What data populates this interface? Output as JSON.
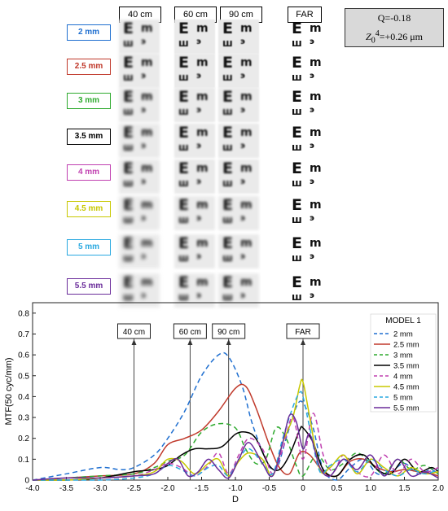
{
  "headers": {
    "c40": "40 cm",
    "c60": "60 cm",
    "c90": "90 cm",
    "far": "FAR"
  },
  "info": {
    "q": "Q=-0.18",
    "z_sym": "Z",
    "z_sup": "4",
    "z_sub": "0",
    "z_val": "=+0.26 μm"
  },
  "pupil_labels": [
    {
      "text": "2 mm",
      "color": "#1f6fd0"
    },
    {
      "text": "2.5 mm",
      "color": "#c0392b"
    },
    {
      "text": "3 mm",
      "color": "#2eaa2e"
    },
    {
      "text": "3.5 mm",
      "color": "#000000"
    },
    {
      "text": "4 mm",
      "color": "#c040b0"
    },
    {
      "text": "4.5 mm",
      "color": "#c8c800"
    },
    {
      "text": "5 mm",
      "color": "#28a8e0"
    },
    {
      "text": "5.5 mm",
      "color": "#6a2c9a"
    }
  ],
  "chart_data": {
    "type": "line",
    "xlabel": "D",
    "ylabel": "MTF(50 cyc/mm)",
    "xlim": [
      -4.0,
      2.0
    ],
    "ylim": [
      0,
      0.85
    ],
    "xticks": [
      -4.0,
      -3.5,
      -3.0,
      -2.5,
      -2.0,
      -1.5,
      -1.0,
      -0.5,
      0,
      0.5,
      1.0,
      1.5,
      2.0
    ],
    "xtick_labels": [
      "-4.0",
      "-3.5",
      "-3.0",
      "-2.5",
      "-2.0",
      "-1.5",
      "-1.0",
      "-0.5",
      "0",
      "0.5",
      "1.0",
      "1.5",
      "2.0"
    ],
    "yticks": [
      0,
      0.1,
      0.2,
      0.3,
      0.4,
      0.5,
      0.6,
      0.7,
      0.8
    ],
    "ytick_labels": [
      "0",
      "0.1",
      "0.2",
      "0.3",
      "0.4",
      "0.5",
      "0.6",
      "0.7",
      "0.8"
    ],
    "legend_title": "MODEL 1",
    "legend_position": "right",
    "annotations": [
      {
        "text": "40 cm",
        "x": -2.5,
        "y": 0.0
      },
      {
        "text": "60 cm",
        "x": -1.67,
        "y": 0.0
      },
      {
        "text": "90 cm",
        "x": -1.1,
        "y": 0.0
      },
      {
        "text": "FAR",
        "x": 0.0,
        "y": 0.0
      }
    ],
    "series": [
      {
        "name": "2 mm",
        "color": "#1f6fd0",
        "dash": "6,4",
        "x": [
          -4.0,
          -3.5,
          -3.0,
          -2.7,
          -2.5,
          -2.2,
          -2.0,
          -1.75,
          -1.5,
          -1.25,
          -1.1,
          -0.9,
          -0.75,
          -0.55,
          -0.4,
          -0.25,
          -0.1,
          0.0,
          0.15,
          0.3,
          0.5,
          0.7,
          0.9,
          1.1,
          1.3,
          1.5,
          1.7,
          1.9,
          2.0
        ],
        "values": [
          0.0,
          0.03,
          0.06,
          0.05,
          0.06,
          0.12,
          0.2,
          0.33,
          0.5,
          0.6,
          0.59,
          0.45,
          0.27,
          0.1,
          0.05,
          0.2,
          0.35,
          0.37,
          0.25,
          0.05,
          0.0,
          0.06,
          0.1,
          0.03,
          0.04,
          0.08,
          0.03,
          0.05,
          0.02
        ]
      },
      {
        "name": "2.5 mm",
        "color": "#c0392b",
        "dash": "",
        "x": [
          -4.0,
          -3.5,
          -3.0,
          -2.5,
          -2.2,
          -2.0,
          -1.75,
          -1.5,
          -1.25,
          -1.0,
          -0.85,
          -0.7,
          -0.5,
          -0.35,
          -0.2,
          -0.05,
          0.1,
          0.3,
          0.5,
          0.7,
          0.9,
          1.1,
          1.3,
          1.5,
          1.7,
          1.9,
          2.0
        ],
        "values": [
          0.0,
          0.01,
          0.02,
          0.03,
          0.08,
          0.17,
          0.2,
          0.24,
          0.33,
          0.44,
          0.45,
          0.35,
          0.17,
          0.06,
          0.03,
          0.13,
          0.12,
          0.04,
          0.02,
          0.09,
          0.1,
          0.06,
          0.04,
          0.05,
          0.04,
          0.03,
          0.02
        ]
      },
      {
        "name": "3 mm",
        "color": "#2eaa2e",
        "dash": "6,4",
        "x": [
          -4.0,
          -3.5,
          -3.0,
          -2.5,
          -2.2,
          -2.0,
          -1.75,
          -1.5,
          -1.25,
          -1.0,
          -0.85,
          -0.7,
          -0.55,
          -0.4,
          -0.25,
          -0.1,
          0.0,
          0.2,
          0.4,
          0.6,
          0.8,
          1.0,
          1.2,
          1.4,
          1.6,
          1.8,
          2.0
        ],
        "values": [
          0.0,
          0.01,
          0.02,
          0.03,
          0.06,
          0.09,
          0.12,
          0.23,
          0.27,
          0.25,
          0.15,
          0.08,
          0.1,
          0.25,
          0.2,
          0.07,
          0.02,
          0.12,
          0.05,
          0.08,
          0.13,
          0.08,
          0.03,
          0.1,
          0.05,
          0.07,
          0.03
        ]
      },
      {
        "name": "3.5 mm",
        "color": "#000000",
        "dash": "",
        "x": [
          -4.0,
          -3.5,
          -3.0,
          -2.5,
          -2.2,
          -2.0,
          -1.8,
          -1.6,
          -1.4,
          -1.2,
          -1.0,
          -0.85,
          -0.7,
          -0.5,
          -0.35,
          -0.2,
          -0.05,
          0.0,
          0.15,
          0.3,
          0.5,
          0.7,
          0.9,
          1.1,
          1.3,
          1.5,
          1.7,
          1.9,
          2.0
        ],
        "values": [
          0.0,
          0.0,
          0.01,
          0.04,
          0.05,
          0.07,
          0.12,
          0.15,
          0.15,
          0.16,
          0.22,
          0.23,
          0.2,
          0.07,
          0.05,
          0.12,
          0.24,
          0.25,
          0.18,
          0.05,
          0.02,
          0.1,
          0.12,
          0.05,
          0.03,
          0.1,
          0.04,
          0.06,
          0.04
        ]
      },
      {
        "name": "4 mm",
        "color": "#c040b0",
        "dash": "6,4",
        "x": [
          -4.0,
          -3.5,
          -3.0,
          -2.5,
          -2.2,
          -2.0,
          -1.8,
          -1.6,
          -1.4,
          -1.25,
          -1.1,
          -0.95,
          -0.8,
          -0.6,
          -0.45,
          -0.3,
          -0.15,
          0.0,
          0.15,
          0.3,
          0.45,
          0.6,
          0.8,
          1.0,
          1.2,
          1.4,
          1.6,
          1.8,
          2.0
        ],
        "values": [
          0.0,
          0.01,
          0.01,
          0.02,
          0.05,
          0.08,
          0.06,
          0.02,
          0.07,
          0.13,
          0.03,
          0.12,
          0.2,
          0.15,
          0.03,
          0.15,
          0.3,
          0.1,
          0.32,
          0.12,
          0.04,
          0.12,
          0.04,
          0.02,
          0.12,
          0.03,
          0.1,
          0.04,
          0.06
        ]
      },
      {
        "name": "4.5 mm",
        "color": "#c8c800",
        "dash": "",
        "x": [
          -4.0,
          -3.5,
          -3.0,
          -2.5,
          -2.2,
          -2.0,
          -1.8,
          -1.6,
          -1.4,
          -1.25,
          -1.1,
          -0.95,
          -0.8,
          -0.6,
          -0.45,
          -0.3,
          -0.15,
          -0.05,
          0.0,
          0.1,
          0.25,
          0.4,
          0.6,
          0.8,
          1.0,
          1.2,
          1.4,
          1.6,
          1.8,
          2.0
        ],
        "values": [
          0.0,
          0.0,
          0.01,
          0.02,
          0.04,
          0.1,
          0.09,
          0.03,
          0.08,
          0.1,
          0.02,
          0.09,
          0.13,
          0.1,
          0.02,
          0.18,
          0.3,
          0.45,
          0.47,
          0.3,
          0.05,
          0.06,
          0.12,
          0.03,
          0.1,
          0.06,
          0.02,
          0.06,
          0.03,
          0.04
        ]
      },
      {
        "name": "5 mm",
        "color": "#28a8e0",
        "dash": "6,4",
        "x": [
          -4.0,
          -3.5,
          -3.0,
          -2.5,
          -2.2,
          -2.0,
          -1.8,
          -1.6,
          -1.4,
          -1.25,
          -1.1,
          -0.95,
          -0.8,
          -0.6,
          -0.45,
          -0.3,
          -0.15,
          -0.05,
          0.0,
          0.1,
          0.25,
          0.4,
          0.6,
          0.8,
          1.0,
          1.2,
          1.4,
          1.6,
          1.8,
          2.0
        ],
        "values": [
          0.0,
          0.0,
          0.0,
          0.01,
          0.03,
          0.07,
          0.05,
          0.02,
          0.06,
          0.07,
          0.02,
          0.1,
          0.15,
          0.08,
          0.03,
          0.2,
          0.35,
          0.42,
          0.4,
          0.25,
          0.04,
          0.07,
          0.1,
          0.04,
          0.1,
          0.05,
          0.02,
          0.05,
          0.03,
          0.05
        ]
      },
      {
        "name": "5.5 mm",
        "color": "#6a2c9a",
        "dash": "",
        "x": [
          -4.0,
          -3.5,
          -3.0,
          -2.5,
          -2.2,
          -2.0,
          -1.85,
          -1.7,
          -1.55,
          -1.4,
          -1.25,
          -1.1,
          -0.95,
          -0.8,
          -0.6,
          -0.45,
          -0.3,
          -0.2,
          -0.1,
          0.0,
          0.1,
          0.25,
          0.4,
          0.6,
          0.8,
          1.0,
          1.2,
          1.4,
          1.6,
          1.8,
          2.0
        ],
        "values": [
          0.0,
          0.01,
          0.01,
          0.02,
          0.03,
          0.08,
          0.1,
          0.02,
          0.04,
          0.1,
          0.05,
          0.01,
          0.1,
          0.18,
          0.08,
          0.02,
          0.18,
          0.31,
          0.28,
          0.15,
          0.22,
          0.06,
          0.02,
          0.1,
          0.05,
          0.12,
          0.02,
          0.1,
          0.02,
          0.04,
          0.01
        ]
      }
    ]
  }
}
